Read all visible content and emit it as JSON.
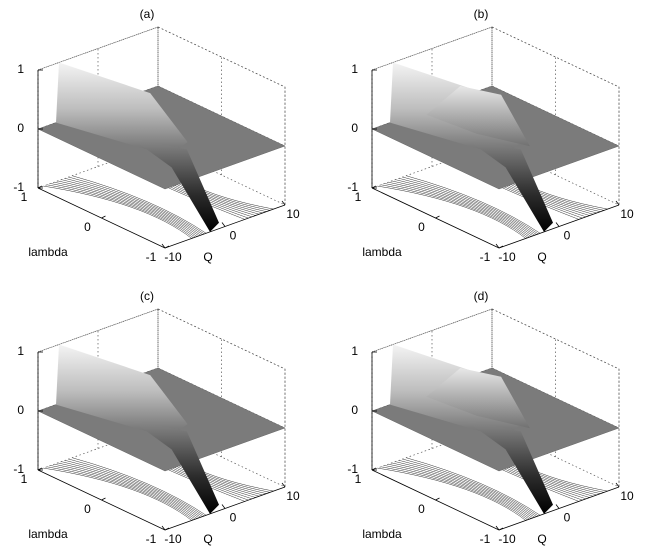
{
  "chart_data": [
    {
      "type": "surface",
      "title": "(a)",
      "xlabel": "Q",
      "ylabel": "lambda",
      "xlim": [
        -10,
        10
      ],
      "xticks": [
        -10,
        0,
        10
      ],
      "ylim": [
        -1,
        1
      ],
      "yticks": [
        -1,
        0,
        1
      ],
      "zlim": [
        -1,
        1
      ],
      "zticks": [
        -1,
        0,
        1
      ],
      "grid": true
    },
    {
      "type": "surface",
      "title": "(b)",
      "xlabel": "Q",
      "ylabel": "lambda",
      "xlim": [
        -10,
        10
      ],
      "xticks": [
        -10,
        0,
        10
      ],
      "ylim": [
        -1,
        1
      ],
      "yticks": [
        -1,
        0,
        1
      ],
      "zlim": [
        -1,
        1
      ],
      "zticks": [
        -1,
        0,
        1
      ],
      "grid": true
    },
    {
      "type": "surface",
      "title": "(c)",
      "xlabel": "Q",
      "ylabel": "lambda",
      "xlim": [
        -10,
        10
      ],
      "xticks": [
        -10,
        0,
        10
      ],
      "ylim": [
        -1,
        1
      ],
      "yticks": [
        -1,
        0,
        1
      ],
      "zlim": [
        -1,
        1
      ],
      "zticks": [
        -1,
        0,
        1
      ],
      "grid": true
    },
    {
      "type": "surface",
      "title": "(d)",
      "xlabel": "Q",
      "ylabel": "lambda",
      "xlim": [
        -10,
        10
      ],
      "xticks": [
        -10,
        0,
        10
      ],
      "ylim": [
        -1,
        1
      ],
      "yticks": [
        -1,
        0,
        1
      ],
      "zlim": [
        -1,
        1
      ],
      "zticks": [
        -1,
        0,
        1
      ],
      "grid": true
    }
  ]
}
